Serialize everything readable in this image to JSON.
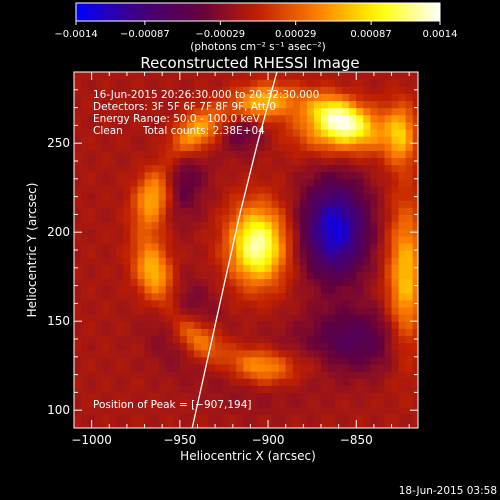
{
  "chart_data": {
    "type": "heatmap",
    "title": "Reconstructed RHESSI Image",
    "xlabel": "Heliocentric X (arcsec)",
    "ylabel": "Heliocentric Y (arcsec)",
    "xlim": [
      -1010,
      -815
    ],
    "ylim": [
      90,
      290
    ],
    "x_ticks": [
      -1000,
      -950,
      -900,
      -850
    ],
    "x_tick_labels": [
      "−1000",
      "−950",
      "−900",
      "−850"
    ],
    "y_ticks": [
      100,
      150,
      200,
      250
    ],
    "y_tick_labels": [
      "100",
      "150",
      "200",
      "250"
    ],
    "colorbar": {
      "min": -0.0014,
      "max": 0.0014,
      "ticks": [
        -0.0014,
        -0.00087,
        -0.00029,
        0.00029,
        0.00087,
        0.0014
      ],
      "tick_labels": [
        "−0.0014",
        "−0.00087",
        "−0.00029",
        "0.00029",
        "0.00087",
        "0.0014"
      ],
      "unit_label": "(photons cm⁻² s⁻¹ asec⁻²)",
      "colormap": [
        "#0000ff",
        "#400080",
        "#600040",
        "#c02000",
        "#ff8000",
        "#ffff00",
        "#ffffff"
      ]
    },
    "annotations": [
      "16-Jun-2015 20:26:30.000 to 20:32:30.000",
      "Detectors: 3F 5F 6F 7F 8F 9F, Att 0",
      "Energy Range: 50.0 - 100.0 keV",
      "Clean      Total counts: 2.38E+04"
    ],
    "peak_label": "Position of Peak = [−907,194]",
    "peak": [
      -907,
      194
    ],
    "limb_curve": [
      [
        -943,
        90
      ],
      [
        -934,
        130
      ],
      [
        -925,
        170
      ],
      [
        -916,
        210
      ],
      [
        -906,
        250
      ],
      [
        -895,
        290
      ]
    ],
    "sources": [
      {
        "x": -906,
        "y": 193,
        "sx": 11,
        "sy": 15,
        "amp": 0.0014
      },
      {
        "x": -862,
        "y": 202,
        "sx": 13,
        "sy": 19,
        "amp": -0.00115
      },
      {
        "x": -858,
        "y": 258,
        "sx": 17,
        "sy": 9,
        "amp": 0.00095
      },
      {
        "x": -825,
        "y": 255,
        "sx": 6,
        "sy": 12,
        "amp": 0.00075
      },
      {
        "x": -822,
        "y": 175,
        "sx": 7,
        "sy": 28,
        "amp": 0.00085
      },
      {
        "x": -950,
        "y": 232,
        "sx": 10,
        "sy": 16,
        "amp": -0.00045
      },
      {
        "x": -915,
        "y": 258,
        "sx": 9,
        "sy": 9,
        "amp": -0.0004
      },
      {
        "x": -948,
        "y": 150,
        "sx": 12,
        "sy": 15,
        "amp": -0.00045
      },
      {
        "x": -852,
        "y": 140,
        "sx": 20,
        "sy": 13,
        "amp": -0.0005
      },
      {
        "x": -905,
        "y": 122,
        "sx": 22,
        "sy": 14,
        "amp": -0.0002
      }
    ],
    "arc": {
      "cx": -893,
      "cy": 199,
      "r": 75,
      "width": 7,
      "amp": 0.00085,
      "theta_range_deg": [
        60,
        270
      ]
    }
  },
  "footer": {
    "timestamp": "18-Jun-2015 03:58"
  }
}
